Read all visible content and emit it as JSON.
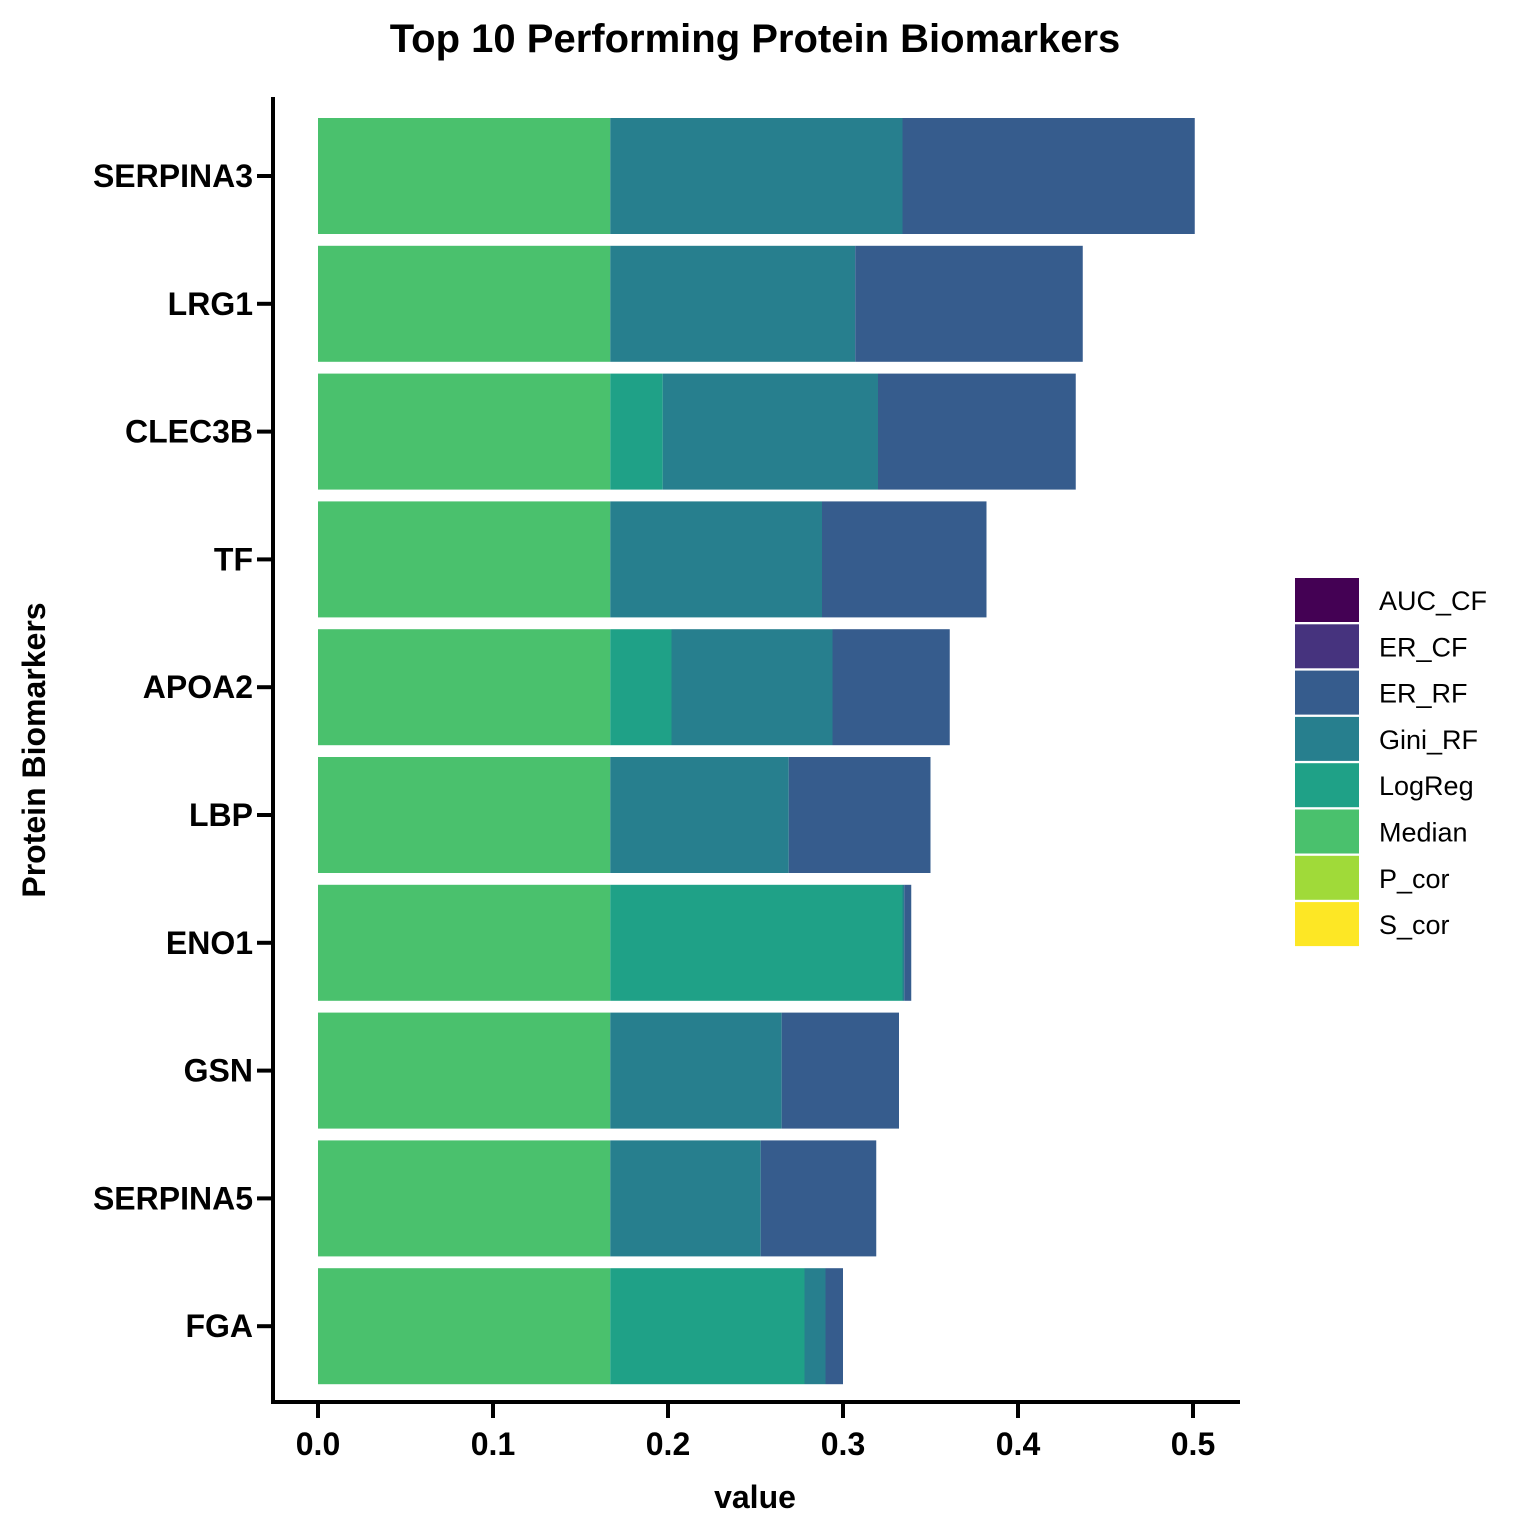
{
  "chart_data": {
    "type": "bar",
    "orientation": "horizontal",
    "stacked": true,
    "title": "Top 10 Performing Protein Biomarkers",
    "xlabel": "value",
    "ylabel": "Protein Biomarkers",
    "xlim": [
      0,
      0.52
    ],
    "xticks": [
      "0.0",
      "0.1",
      "0.2",
      "0.3",
      "0.4",
      "0.5"
    ],
    "xtick_values": [
      0,
      0.1,
      0.2,
      0.3,
      0.4,
      0.5
    ],
    "categories": [
      "SERPINA3",
      "LRG1",
      "CLEC3B",
      "TF",
      "APOA2",
      "LBP",
      "ENO1",
      "GSN",
      "SERPINA5",
      "FGA"
    ],
    "series": [
      {
        "name": "AUC_CF",
        "color": "#440154",
        "values": [
          0,
          0,
          0,
          0,
          0,
          0,
          0,
          0,
          0,
          0
        ]
      },
      {
        "name": "ER_CF",
        "color": "#46337E",
        "values": [
          0,
          0,
          0,
          0,
          0,
          0,
          0,
          0,
          0,
          0
        ]
      },
      {
        "name": "ER_RF",
        "color": "#365C8D",
        "values": [
          0.167,
          0.13,
          0.113,
          0.094,
          0.067,
          0.081,
          0.004,
          0.067,
          0.066,
          0.01
        ]
      },
      {
        "name": "Gini_RF",
        "color": "#277F8E",
        "values": [
          0.167,
          0.14,
          0.123,
          0.121,
          0.092,
          0.102,
          0.001,
          0.098,
          0.086,
          0.012
        ]
      },
      {
        "name": "LogReg",
        "color": "#1FA187",
        "values": [
          0,
          0,
          0.03,
          0,
          0.035,
          0,
          0.167,
          0,
          0,
          0.111
        ]
      },
      {
        "name": "Median",
        "color": "#4AC16D",
        "values": [
          0.167,
          0.167,
          0.167,
          0.167,
          0.167,
          0.167,
          0.167,
          0.167,
          0.167,
          0.167
        ]
      },
      {
        "name": "P_cor",
        "color": "#A0DA39",
        "values": [
          0,
          0,
          0,
          0,
          0,
          0,
          0,
          0,
          0,
          0
        ]
      },
      {
        "name": "S_cor",
        "color": "#FDE725",
        "values": [
          0,
          0,
          0,
          0,
          0,
          0,
          0,
          0,
          0,
          0
        ]
      }
    ],
    "legend_position": "right",
    "grid": false
  }
}
